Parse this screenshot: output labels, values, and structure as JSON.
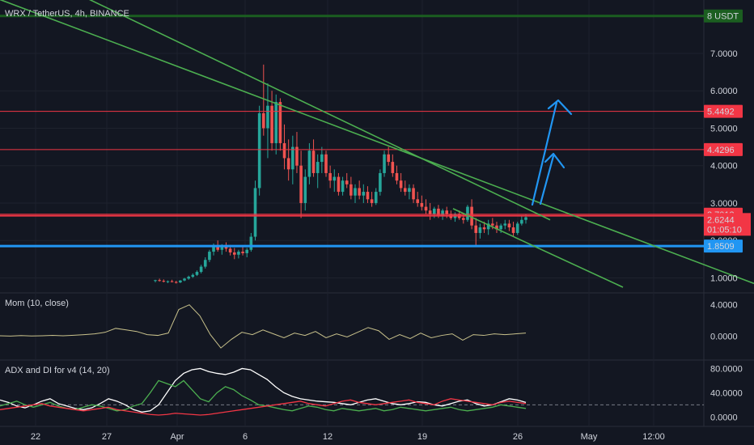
{
  "header": {
    "symbol": "WRX / TetherUS, 4h, BINANCE"
  },
  "panes": {
    "momentum_title": "Mom (10, close)",
    "adx_title": "ADX and DI for v4 (14, 20)"
  },
  "chart_data": [
    {
      "type": "candlestick",
      "pane": "price",
      "ylim": [
        0.75,
        8.2
      ],
      "y_ticks": [
        1.0,
        2.0,
        3.0,
        4.0,
        5.0,
        6.0,
        7.0
      ],
      "y_tick_labels": [
        "1.0000",
        "2.0000",
        "3.0000",
        "4.0000",
        "5.0000",
        "6.0000",
        "7.0000"
      ],
      "x_tick_labels": [
        "22",
        "27",
        "Apr",
        "6",
        "12",
        "19",
        "26",
        "May",
        "12:00"
      ],
      "candles": [
        [
          0.92,
          0.95,
          0.88,
          0.94
        ],
        [
          0.94,
          0.98,
          0.9,
          0.92
        ],
        [
          0.92,
          0.96,
          0.88,
          0.9
        ],
        [
          0.9,
          0.93,
          0.86,
          0.91
        ],
        [
          0.91,
          0.95,
          0.88,
          0.89
        ],
        [
          0.89,
          0.92,
          0.85,
          0.88
        ],
        [
          0.88,
          0.94,
          0.86,
          0.93
        ],
        [
          0.93,
          1.0,
          0.91,
          0.98
        ],
        [
          0.98,
          1.06,
          0.95,
          1.03
        ],
        [
          1.03,
          1.12,
          1.0,
          1.08
        ],
        [
          1.08,
          1.2,
          1.05,
          1.16
        ],
        [
          1.16,
          1.35,
          1.12,
          1.3
        ],
        [
          1.3,
          1.55,
          1.25,
          1.48
        ],
        [
          1.48,
          1.75,
          1.42,
          1.7
        ],
        [
          1.7,
          1.92,
          1.6,
          1.85
        ],
        [
          1.85,
          2.0,
          1.7,
          1.75
        ],
        [
          1.75,
          1.9,
          1.62,
          1.82
        ],
        [
          1.82,
          1.95,
          1.7,
          1.78
        ],
        [
          1.78,
          1.88,
          1.6,
          1.68
        ],
        [
          1.68,
          1.8,
          1.5,
          1.62
        ],
        [
          1.62,
          1.75,
          1.52,
          1.7
        ],
        [
          1.7,
          1.85,
          1.6,
          1.66
        ],
        [
          1.66,
          1.8,
          1.55,
          1.75
        ],
        [
          1.75,
          2.2,
          1.7,
          2.1
        ],
        [
          2.1,
          3.6,
          2.0,
          3.4
        ],
        [
          3.4,
          5.6,
          3.2,
          5.4
        ],
        [
          5.4,
          6.7,
          4.8,
          5.0
        ],
        [
          5.0,
          6.2,
          4.2,
          5.6
        ],
        [
          5.6,
          6.0,
          4.4,
          4.6
        ],
        [
          4.6,
          5.9,
          4.3,
          5.7
        ],
        [
          5.7,
          5.8,
          4.4,
          4.6
        ],
        [
          4.6,
          5.1,
          3.9,
          4.2
        ],
        [
          4.2,
          4.7,
          3.6,
          3.9
        ],
        [
          3.9,
          4.8,
          3.5,
          4.5
        ],
        [
          4.5,
          4.9,
          3.8,
          4.0
        ],
        [
          4.0,
          4.4,
          2.6,
          3.0
        ],
        [
          3.0,
          3.9,
          2.8,
          3.7
        ],
        [
          3.7,
          4.6,
          3.5,
          4.4
        ],
        [
          4.4,
          4.7,
          3.7,
          3.8
        ],
        [
          3.8,
          4.3,
          3.4,
          4.1
        ],
        [
          4.1,
          4.5,
          3.8,
          4.3
        ],
        [
          4.3,
          4.4,
          3.7,
          3.8
        ],
        [
          3.8,
          4.0,
          3.4,
          3.6
        ],
        [
          3.6,
          3.9,
          3.3,
          3.7
        ],
        [
          3.7,
          3.8,
          3.2,
          3.3
        ],
        [
          3.3,
          3.7,
          3.2,
          3.6
        ],
        [
          3.6,
          3.8,
          3.4,
          3.5
        ],
        [
          3.5,
          3.7,
          3.1,
          3.2
        ],
        [
          3.2,
          3.5,
          3.0,
          3.4
        ],
        [
          3.4,
          3.6,
          3.1,
          3.2
        ],
        [
          3.2,
          3.5,
          3.0,
          3.3
        ],
        [
          3.3,
          3.45,
          3.0,
          3.1
        ],
        [
          3.1,
          3.3,
          2.9,
          3.0
        ],
        [
          3.0,
          3.4,
          2.95,
          3.3
        ],
        [
          3.3,
          3.9,
          3.2,
          3.8
        ],
        [
          3.8,
          4.4,
          3.7,
          4.3
        ],
        [
          4.3,
          4.5,
          4.0,
          4.1
        ],
        [
          4.1,
          4.3,
          3.7,
          3.8
        ],
        [
          3.8,
          4.0,
          3.5,
          3.6
        ],
        [
          3.6,
          3.8,
          3.3,
          3.4
        ],
        [
          3.4,
          3.6,
          3.2,
          3.3
        ],
        [
          3.3,
          3.5,
          3.1,
          3.4
        ],
        [
          3.4,
          3.5,
          3.0,
          3.1
        ],
        [
          3.1,
          3.3,
          2.9,
          3.0
        ],
        [
          3.0,
          3.2,
          2.8,
          2.9
        ],
        [
          2.9,
          3.1,
          2.7,
          2.8
        ],
        [
          2.8,
          3.0,
          2.55,
          2.7
        ],
        [
          2.7,
          2.9,
          2.6,
          2.85
        ],
        [
          2.85,
          2.95,
          2.6,
          2.65
        ],
        [
          2.65,
          2.85,
          2.55,
          2.8
        ],
        [
          2.8,
          2.9,
          2.6,
          2.7
        ],
        [
          2.7,
          2.8,
          2.55,
          2.6
        ],
        [
          2.6,
          2.75,
          2.5,
          2.7
        ],
        [
          2.7,
          2.8,
          2.55,
          2.6
        ],
        [
          2.6,
          2.7,
          2.45,
          2.55
        ],
        [
          2.55,
          2.95,
          2.5,
          2.9
        ],
        [
          2.9,
          3.1,
          2.3,
          2.4
        ],
        [
          2.4,
          2.6,
          1.85,
          2.2
        ],
        [
          2.2,
          2.45,
          2.05,
          2.35
        ],
        [
          2.35,
          2.5,
          2.2,
          2.3
        ],
        [
          2.3,
          2.55,
          2.15,
          2.45
        ],
        [
          2.45,
          2.6,
          2.3,
          2.4
        ],
        [
          2.4,
          2.5,
          2.2,
          2.3
        ],
        [
          2.3,
          2.45,
          2.2,
          2.4
        ],
        [
          2.4,
          2.55,
          2.3,
          2.45
        ],
        [
          2.45,
          2.55,
          2.25,
          2.35
        ],
        [
          2.35,
          2.5,
          2.1,
          2.2
        ],
        [
          2.2,
          2.5,
          2.15,
          2.45
        ],
        [
          2.45,
          2.65,
          2.4,
          2.55
        ],
        [
          2.55,
          2.7,
          2.45,
          2.62
        ]
      ],
      "trendlines": [
        {
          "points": [
            [
              -20,
              8.6
            ],
            [
              932,
              0.85
            ]
          ]
        },
        {
          "points": [
            [
              95,
              8.6
            ],
            [
              680,
              2.55
            ]
          ]
        }
      ],
      "horizontal_levels": [
        {
          "value": 8.0,
          "label": "8 USDT",
          "color": "#1b5e20"
        },
        {
          "value": 5.4492,
          "label": "5.4492",
          "color": "#f23645"
        },
        {
          "value": 4.4296,
          "label": "4.4296",
          "color": "#f23645"
        },
        {
          "value": 2.7013,
          "label": "2.7013",
          "color": "#f23645"
        },
        {
          "value": 1.8509,
          "label": "1.8509",
          "color": "#2196f3"
        }
      ],
      "last_price": {
        "value": 2.6244,
        "label": "2.6244",
        "countdown": "01:05:10"
      }
    },
    {
      "type": "line",
      "pane": "momentum",
      "ylim": [
        -1.8,
        5.0
      ],
      "y_ticks": [
        0.0,
        4.0
      ],
      "y_tick_labels": [
        "0.0000",
        "4.0000"
      ],
      "series": [
        {
          "values": [
            0.05,
            0.02,
            0.08,
            0.03,
            0.06,
            0.1,
            0.05,
            0.12,
            0.2,
            0.3,
            0.5,
            1.0,
            0.8,
            0.6,
            0.2,
            0.1,
            0.4,
            3.4,
            4.0,
            2.6,
            0.2,
            -1.5,
            -0.4,
            0.5,
            0.2,
            0.8,
            0.3,
            -0.2,
            0.4,
            0.1,
            0.6,
            -0.2,
            0.3,
            -0.1,
            0.5,
            1.1,
            0.7,
            -0.4,
            0.2,
            -0.3,
            0.4,
            -0.2,
            0.1,
            0.3,
            -0.5,
            0.2,
            0.1,
            0.3,
            0.2,
            0.3,
            0.4
          ]
        }
      ]
    },
    {
      "type": "line",
      "pane": "adx",
      "ylim": [
        -5,
        90
      ],
      "y_ticks": [
        0,
        40,
        80
      ],
      "y_tick_labels": [
        "0.0000",
        "40.0000",
        "80.0000"
      ],
      "threshold": 20,
      "series": [
        {
          "color": "#ffffff",
          "values": [
            28,
            24,
            18,
            15,
            20,
            26,
            30,
            22,
            18,
            14,
            12,
            15,
            22,
            30,
            26,
            20,
            12,
            8,
            10,
            20,
            40,
            60,
            72,
            78,
            80,
            75,
            72,
            70,
            74,
            80,
            78,
            70,
            62,
            50,
            40,
            34,
            30,
            28,
            26,
            25,
            24,
            22,
            20,
            24,
            28,
            30,
            26,
            22,
            20,
            22,
            25,
            24,
            20,
            18,
            22,
            26,
            28,
            22,
            18,
            20,
            25,
            30,
            28,
            24
          ]
        },
        {
          "color": "#4caf50",
          "values": [
            18,
            22,
            26,
            20,
            16,
            20,
            24,
            18,
            14,
            12,
            16,
            20,
            18,
            14,
            10,
            12,
            18,
            22,
            40,
            60,
            55,
            50,
            60,
            45,
            30,
            25,
            40,
            50,
            45,
            35,
            28,
            20,
            18,
            15,
            12,
            10,
            14,
            18,
            16,
            12,
            10,
            14,
            12,
            10,
            12,
            14,
            10,
            12,
            16,
            14,
            12,
            10,
            12,
            14,
            16,
            12,
            10,
            12,
            14,
            16,
            20,
            18,
            16,
            14
          ]
        },
        {
          "color": "#f23645",
          "values": [
            12,
            14,
            16,
            18,
            20,
            22,
            18,
            16,
            14,
            12,
            10,
            12,
            14,
            16,
            12,
            10,
            8,
            6,
            4,
            3,
            4,
            6,
            5,
            4,
            3,
            4,
            6,
            8,
            10,
            12,
            14,
            16,
            18,
            20,
            22,
            24,
            26,
            22,
            20,
            18,
            22,
            26,
            28,
            24,
            22,
            20,
            22,
            24,
            26,
            28,
            24,
            22,
            20,
            26,
            30,
            28,
            26,
            24,
            22,
            20,
            24,
            26,
            24,
            22
          ]
        }
      ]
    }
  ]
}
